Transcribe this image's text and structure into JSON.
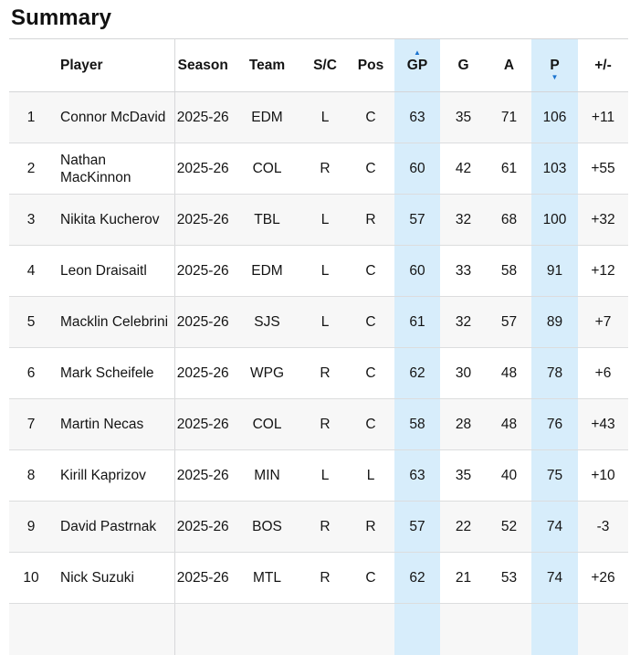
{
  "page": {
    "title": "Summary"
  },
  "icons": {
    "sort_up_glyph": "▲",
    "sort_down_glyph": "▼"
  },
  "colors": {
    "highlight_column_bg": "#d7edfb",
    "alt_row_bg": "#f7f7f7",
    "sort_arrow_blue": "#1a73cf",
    "border_grey": "#d4d5d7",
    "text": "#141414"
  },
  "table": {
    "columns": [
      {
        "key": "rank",
        "label": "",
        "highlight": false,
        "sort": null
      },
      {
        "key": "player",
        "label": "Player",
        "highlight": false,
        "sort": null
      },
      {
        "key": "season",
        "label": "Season",
        "highlight": false,
        "sort": null
      },
      {
        "key": "team",
        "label": "Team",
        "highlight": false,
        "sort": null
      },
      {
        "key": "shoots",
        "label": "S/C",
        "highlight": false,
        "sort": null
      },
      {
        "key": "pos",
        "label": "Pos",
        "highlight": false,
        "sort": null
      },
      {
        "key": "gp",
        "label": "GP",
        "highlight": true,
        "sort": "asc"
      },
      {
        "key": "g",
        "label": "G",
        "highlight": false,
        "sort": null
      },
      {
        "key": "a",
        "label": "A",
        "highlight": false,
        "sort": null
      },
      {
        "key": "p",
        "label": "P",
        "highlight": true,
        "sort": "desc"
      },
      {
        "key": "plusminus",
        "label": "+/-",
        "highlight": false,
        "sort": null
      }
    ],
    "rows": [
      {
        "rank": "1",
        "player": "Connor McDavid",
        "season": "2025-26",
        "team": "EDM",
        "shoots": "L",
        "pos": "C",
        "gp": "63",
        "g": "35",
        "a": "71",
        "p": "106",
        "plusminus": "+11"
      },
      {
        "rank": "2",
        "player": "Nathan MacKinnon",
        "season": "2025-26",
        "team": "COL",
        "shoots": "R",
        "pos": "C",
        "gp": "60",
        "g": "42",
        "a": "61",
        "p": "103",
        "plusminus": "+55"
      },
      {
        "rank": "3",
        "player": "Nikita Kucherov",
        "season": "2025-26",
        "team": "TBL",
        "shoots": "L",
        "pos": "R",
        "gp": "57",
        "g": "32",
        "a": "68",
        "p": "100",
        "plusminus": "+32"
      },
      {
        "rank": "4",
        "player": "Leon Draisaitl",
        "season": "2025-26",
        "team": "EDM",
        "shoots": "L",
        "pos": "C",
        "gp": "60",
        "g": "33",
        "a": "58",
        "p": "91",
        "plusminus": "+12"
      },
      {
        "rank": "5",
        "player": "Macklin Celebrini",
        "season": "2025-26",
        "team": "SJS",
        "shoots": "L",
        "pos": "C",
        "gp": "61",
        "g": "32",
        "a": "57",
        "p": "89",
        "plusminus": "+7"
      },
      {
        "rank": "6",
        "player": "Mark Scheifele",
        "season": "2025-26",
        "team": "WPG",
        "shoots": "R",
        "pos": "C",
        "gp": "62",
        "g": "30",
        "a": "48",
        "p": "78",
        "plusminus": "+6"
      },
      {
        "rank": "7",
        "player": "Martin Necas",
        "season": "2025-26",
        "team": "COL",
        "shoots": "R",
        "pos": "C",
        "gp": "58",
        "g": "28",
        "a": "48",
        "p": "76",
        "plusminus": "+43"
      },
      {
        "rank": "8",
        "player": "Kirill Kaprizov",
        "season": "2025-26",
        "team": "MIN",
        "shoots": "L",
        "pos": "L",
        "gp": "63",
        "g": "35",
        "a": "40",
        "p": "75",
        "plusminus": "+10"
      },
      {
        "rank": "9",
        "player": "David Pastrnak",
        "season": "2025-26",
        "team": "BOS",
        "shoots": "R",
        "pos": "R",
        "gp": "57",
        "g": "22",
        "a": "52",
        "p": "74",
        "plusminus": "-3"
      },
      {
        "rank": "10",
        "player": "Nick Suzuki",
        "season": "2025-26",
        "team": "MTL",
        "shoots": "R",
        "pos": "C",
        "gp": "62",
        "g": "21",
        "a": "53",
        "p": "74",
        "plusminus": "+26"
      }
    ],
    "partial_row_visible": true
  }
}
